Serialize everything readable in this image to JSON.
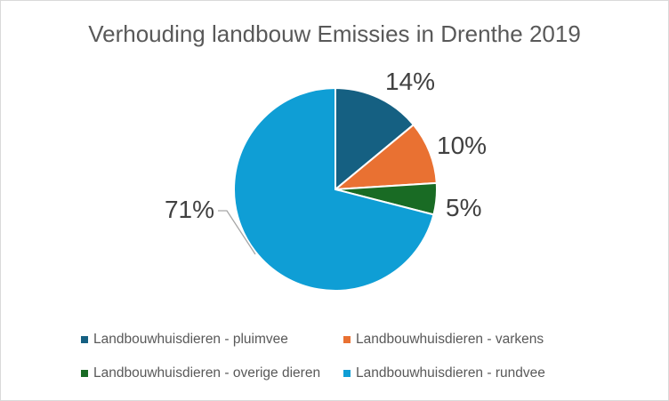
{
  "chart_data": {
    "type": "pie",
    "title": "Verhouding landbouw Emissies in Drenthe 2019",
    "categories": [
      "Landbouwhuisdieren - pluimvee",
      "Landbouwhuisdieren - varkens",
      "Landbouwhuisdieren - overige dieren",
      "Landbouwhuisdieren - rundvee"
    ],
    "values": [
      14,
      10,
      5,
      71
    ],
    "labels": [
      "14%",
      "10%",
      "5%",
      "71%"
    ],
    "colors": [
      "#156082",
      "#e97132",
      "#196b24",
      "#0f9ed5"
    ],
    "legend_position": "bottom"
  }
}
